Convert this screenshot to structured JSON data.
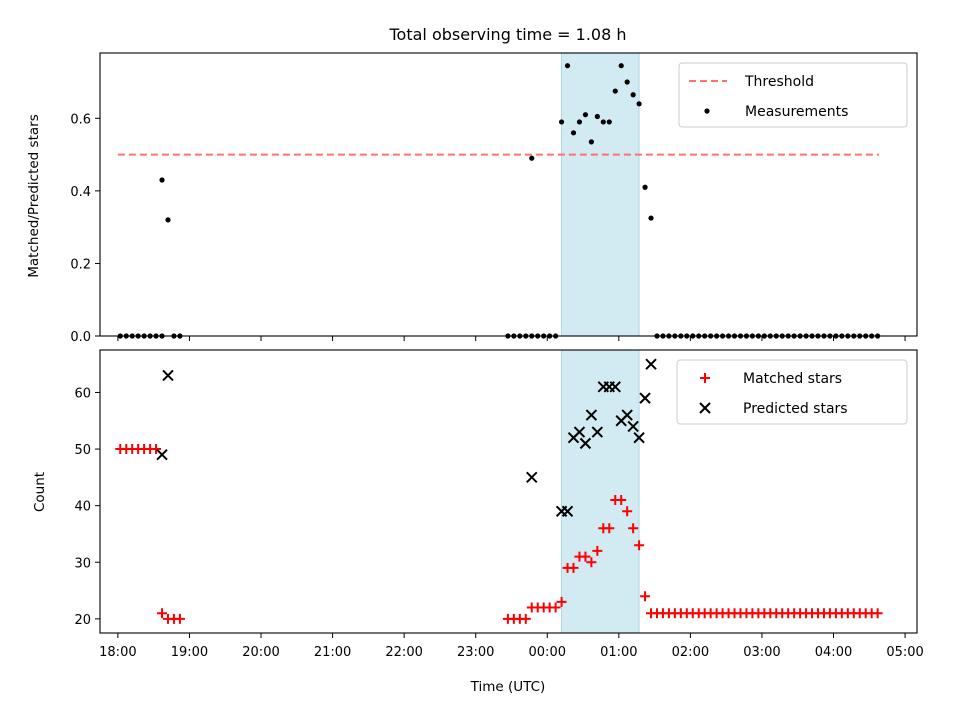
{
  "chart_data": [
    {
      "type": "scatter",
      "title": "Total observing time = 1.08 h",
      "xlabel": "",
      "ylabel": "Matched/Predicted stars",
      "xlim": [
        "17:45",
        "05:10"
      ],
      "ylim": [
        0,
        0.78
      ],
      "yticks": [
        "0.0",
        "0.2",
        "0.4",
        "0.6"
      ],
      "grid": false,
      "legend": "top-right",
      "shaded_interval": [
        "00:12",
        "01:17"
      ],
      "threshold": {
        "name": "Threshold",
        "value": 0.5,
        "from": "18:00",
        "to": "04:38",
        "color": "#ff7070",
        "style": "dashed"
      },
      "series": [
        {
          "name": "Measurements",
          "marker": "dot",
          "color": "#000000",
          "points": [
            [
              "18:02",
              0
            ],
            [
              "18:07",
              0
            ],
            [
              "18:12",
              0
            ],
            [
              "18:17",
              0
            ],
            [
              "18:22",
              0
            ],
            [
              "18:27",
              0
            ],
            [
              "18:32",
              0
            ],
            [
              "18:37",
              0
            ],
            [
              "18:37",
              0.43
            ],
            [
              "18:42",
              0.32
            ],
            [
              "18:47",
              0
            ],
            [
              "18:52",
              0
            ],
            [
              "23:27",
              0
            ],
            [
              "23:32",
              0
            ],
            [
              "23:37",
              0
            ],
            [
              "23:42",
              0
            ],
            [
              "23:47",
              0
            ],
            [
              "23:52",
              0
            ],
            [
              "23:57",
              0
            ],
            [
              "00:02",
              0
            ],
            [
              "00:07",
              0
            ],
            [
              "23:47",
              0.49
            ],
            [
              "00:12",
              0.59
            ],
            [
              "00:17",
              0.745
            ],
            [
              "00:22",
              0.56
            ],
            [
              "00:27",
              0.59
            ],
            [
              "00:32",
              0.61
            ],
            [
              "00:37",
              0.535
            ],
            [
              "00:42",
              0.605
            ],
            [
              "00:47",
              0.59
            ],
            [
              "00:52",
              0.59
            ],
            [
              "00:57",
              0.675
            ],
            [
              "01:02",
              0.745
            ],
            [
              "01:07",
              0.7
            ],
            [
              "01:12",
              0.665
            ],
            [
              "01:17",
              0.64
            ],
            [
              "01:22",
              0.41
            ],
            [
              "01:27",
              0.325
            ],
            [
              "01:32",
              0
            ],
            [
              "01:37",
              0
            ],
            [
              "01:42",
              0
            ],
            [
              "01:47",
              0
            ],
            [
              "01:52",
              0
            ],
            [
              "01:57",
              0
            ],
            [
              "02:02",
              0
            ],
            [
              "02:07",
              0
            ],
            [
              "02:12",
              0
            ],
            [
              "02:17",
              0
            ],
            [
              "02:22",
              0
            ],
            [
              "02:27",
              0
            ],
            [
              "02:32",
              0
            ],
            [
              "02:37",
              0
            ],
            [
              "02:42",
              0
            ],
            [
              "02:47",
              0
            ],
            [
              "02:52",
              0
            ],
            [
              "02:57",
              0
            ],
            [
              "03:02",
              0
            ],
            [
              "03:07",
              0
            ],
            [
              "03:12",
              0
            ],
            [
              "03:17",
              0
            ],
            [
              "03:22",
              0
            ],
            [
              "03:27",
              0
            ],
            [
              "03:32",
              0
            ],
            [
              "03:37",
              0
            ],
            [
              "03:42",
              0
            ],
            [
              "03:47",
              0
            ],
            [
              "03:52",
              0
            ],
            [
              "03:57",
              0
            ],
            [
              "04:02",
              0
            ],
            [
              "04:07",
              0
            ],
            [
              "04:12",
              0
            ],
            [
              "04:17",
              0
            ],
            [
              "04:22",
              0
            ],
            [
              "04:27",
              0
            ],
            [
              "04:32",
              0
            ],
            [
              "04:37",
              0
            ]
          ]
        }
      ],
      "legend_entries": [
        "Threshold",
        "Measurements"
      ]
    },
    {
      "type": "scatter",
      "title": "",
      "xlabel": "Time (UTC)",
      "ylabel": "Count",
      "xlim": [
        "17:45",
        "05:10"
      ],
      "xticks": [
        "18:00",
        "19:00",
        "20:00",
        "21:00",
        "22:00",
        "23:00",
        "00:00",
        "01:00",
        "02:00",
        "03:00",
        "04:00",
        "05:00"
      ],
      "ylim": [
        17.5,
        67.5
      ],
      "yticks": [
        "20",
        "30",
        "40",
        "50",
        "60"
      ],
      "grid": false,
      "legend": "top-right",
      "shaded_interval": [
        "00:12",
        "01:17"
      ],
      "series": [
        {
          "name": "Matched stars",
          "marker": "plus",
          "color": "#ff0000",
          "points": [
            [
              "18:02",
              50
            ],
            [
              "18:07",
              50
            ],
            [
              "18:12",
              50
            ],
            [
              "18:17",
              50
            ],
            [
              "18:22",
              50
            ],
            [
              "18:27",
              50
            ],
            [
              "18:32",
              50
            ],
            [
              "18:37",
              21
            ],
            [
              "18:42",
              20
            ],
            [
              "18:47",
              20
            ],
            [
              "18:52",
              20
            ],
            [
              "23:27",
              20
            ],
            [
              "23:32",
              20
            ],
            [
              "23:37",
              20
            ],
            [
              "23:42",
              20
            ],
            [
              "23:47",
              22
            ],
            [
              "23:52",
              22
            ],
            [
              "23:57",
              22
            ],
            [
              "00:02",
              22
            ],
            [
              "00:07",
              22
            ],
            [
              "00:12",
              23
            ],
            [
              "00:17",
              29
            ],
            [
              "00:22",
              29
            ],
            [
              "00:27",
              31
            ],
            [
              "00:32",
              31
            ],
            [
              "00:37",
              30
            ],
            [
              "00:42",
              32
            ],
            [
              "00:47",
              36
            ],
            [
              "00:52",
              36
            ],
            [
              "00:57",
              41
            ],
            [
              "01:02",
              41
            ],
            [
              "01:07",
              39
            ],
            [
              "01:12",
              36
            ],
            [
              "01:17",
              33
            ],
            [
              "01:22",
              24
            ],
            [
              "01:27",
              21
            ],
            [
              "01:32",
              21
            ],
            [
              "01:37",
              21
            ],
            [
              "01:42",
              21
            ],
            [
              "01:47",
              21
            ],
            [
              "01:52",
              21
            ],
            [
              "01:57",
              21
            ],
            [
              "02:02",
              21
            ],
            [
              "02:07",
              21
            ],
            [
              "02:12",
              21
            ],
            [
              "02:17",
              21
            ],
            [
              "02:22",
              21
            ],
            [
              "02:27",
              21
            ],
            [
              "02:32",
              21
            ],
            [
              "02:37",
              21
            ],
            [
              "02:42",
              21
            ],
            [
              "02:47",
              21
            ],
            [
              "02:52",
              21
            ],
            [
              "02:57",
              21
            ],
            [
              "03:02",
              21
            ],
            [
              "03:07",
              21
            ],
            [
              "03:12",
              21
            ],
            [
              "03:17",
              21
            ],
            [
              "03:22",
              21
            ],
            [
              "03:27",
              21
            ],
            [
              "03:32",
              21
            ],
            [
              "03:37",
              21
            ],
            [
              "03:42",
              21
            ],
            [
              "03:47",
              21
            ],
            [
              "03:52",
              21
            ],
            [
              "03:57",
              21
            ],
            [
              "04:02",
              21
            ],
            [
              "04:07",
              21
            ],
            [
              "04:12",
              21
            ],
            [
              "04:17",
              21
            ],
            [
              "04:22",
              21
            ],
            [
              "04:27",
              21
            ],
            [
              "04:32",
              21
            ],
            [
              "04:37",
              21
            ]
          ]
        },
        {
          "name": "Predicted stars",
          "marker": "x",
          "color": "#000000",
          "points": [
            [
              "18:37",
              49
            ],
            [
              "18:42",
              63
            ],
            [
              "23:47",
              45
            ],
            [
              "00:12",
              39
            ],
            [
              "00:17",
              39
            ],
            [
              "00:22",
              52
            ],
            [
              "00:27",
              53
            ],
            [
              "00:32",
              51
            ],
            [
              "00:37",
              56
            ],
            [
              "00:42",
              53
            ],
            [
              "00:47",
              61
            ],
            [
              "00:52",
              61
            ],
            [
              "00:57",
              61
            ],
            [
              "01:02",
              55
            ],
            [
              "01:07",
              56
            ],
            [
              "01:12",
              54
            ],
            [
              "01:17",
              52
            ],
            [
              "01:22",
              59
            ],
            [
              "01:27",
              65
            ]
          ]
        }
      ],
      "legend_entries": [
        "Matched stars",
        "Predicted stars"
      ]
    }
  ]
}
